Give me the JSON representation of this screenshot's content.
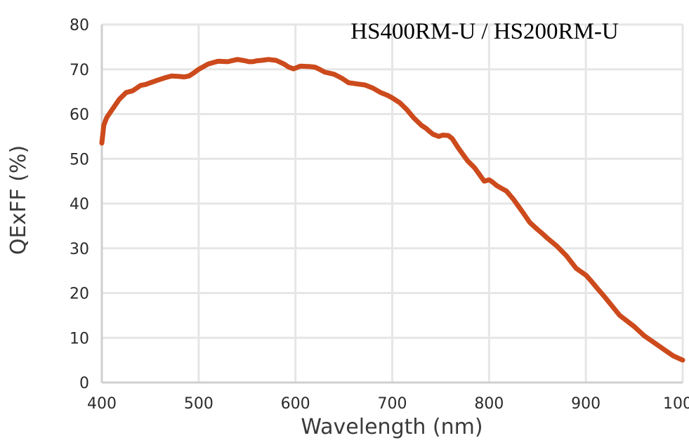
{
  "chart_data": {
    "type": "line",
    "title": "HS400RM-U / HS200RM-U",
    "xlabel": "Wavelength (nm)",
    "ylabel": "QExFF (%)",
    "xlim": [
      400,
      1000
    ],
    "ylim": [
      0,
      80
    ],
    "xticks": [
      400,
      500,
      600,
      700,
      800,
      900,
      1000
    ],
    "yticks": [
      0,
      10,
      20,
      30,
      40,
      50,
      60,
      70,
      80
    ],
    "grid": true,
    "legend": "none",
    "colors": {
      "line": "#cc4a1c",
      "grid": "#e6e6e6",
      "axis": "#cfcfcf",
      "text": "#2b2b2b"
    },
    "series": [
      {
        "x": [
          400,
          402,
          405,
          410,
          418,
          425,
          432,
          440,
          445,
          450,
          458,
          465,
          472,
          480,
          485,
          490,
          495,
          500,
          510,
          520,
          530,
          540,
          548,
          552,
          556,
          560,
          565,
          572,
          580,
          588,
          593,
          598,
          605,
          615,
          620,
          625,
          630,
          640,
          648,
          655,
          665,
          672,
          680,
          688,
          695,
          700,
          708,
          715,
          722,
          730,
          735,
          738,
          742,
          748,
          752,
          758,
          762,
          768,
          773,
          778,
          785,
          790,
          795,
          800,
          803,
          808,
          812,
          818,
          825,
          830,
          835,
          842,
          850,
          855,
          860,
          870,
          880,
          890,
          900,
          905,
          912,
          920,
          935,
          950,
          960,
          970,
          980,
          990,
          1000
        ],
        "y": [
          53.5,
          57.5,
          59.2,
          60.8,
          63.3,
          64.8,
          65.2,
          66.4,
          66.6,
          67.0,
          67.6,
          68.1,
          68.5,
          68.4,
          68.3,
          68.5,
          69.2,
          70.0,
          71.2,
          71.8,
          71.7,
          72.2,
          71.9,
          71.7,
          71.7,
          71.9,
          72.0,
          72.2,
          72.0,
          71.2,
          70.5,
          70.1,
          70.7,
          70.6,
          70.5,
          70.0,
          69.4,
          68.9,
          68.0,
          67.0,
          66.7,
          66.5,
          65.8,
          64.8,
          64.2,
          63.6,
          62.5,
          61.0,
          59.2,
          57.5,
          56.8,
          56.2,
          55.5,
          55.0,
          55.3,
          55.2,
          54.5,
          52.5,
          51.0,
          49.5,
          48.0,
          46.5,
          45.0,
          45.3,
          44.9,
          44.0,
          43.5,
          42.8,
          41.0,
          39.5,
          38.0,
          35.8,
          34.2,
          33.3,
          32.3,
          30.5,
          28.3,
          25.5,
          24.0,
          22.8,
          21.0,
          19.0,
          15.0,
          12.5,
          10.5,
          9.0,
          7.5,
          6.0,
          5.0
        ]
      }
    ]
  }
}
